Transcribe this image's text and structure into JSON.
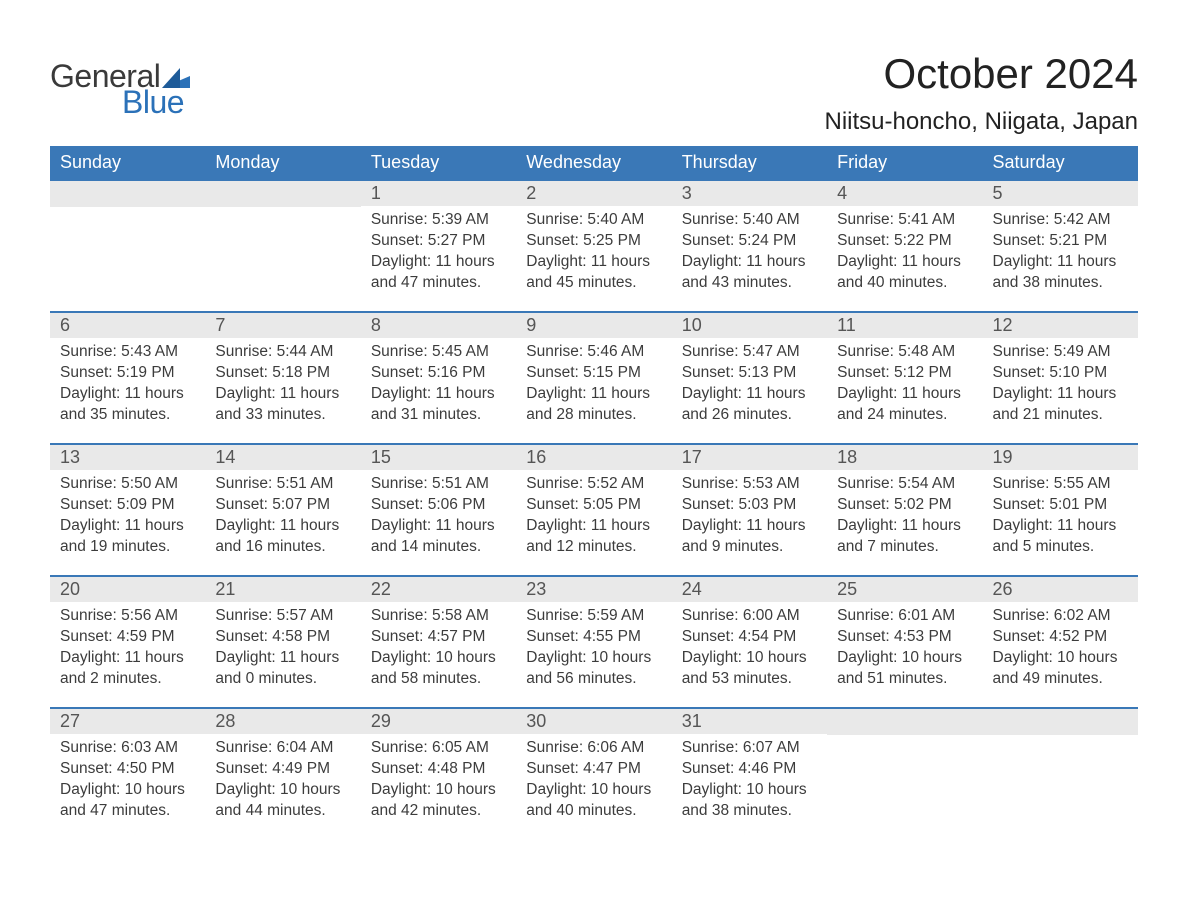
{
  "logo": {
    "text1": "General",
    "text2": "Blue"
  },
  "title": "October 2024",
  "location": "Niitsu-honcho, Niigata, Japan",
  "colors": {
    "header_bg": "#3a78b7",
    "header_text": "#ffffff",
    "daynum_bg": "#e9e9e9",
    "row_border": "#3a78b7",
    "body_text": "#3c3c3c",
    "logo_blue": "#2b71b8",
    "page_bg": "#ffffff"
  },
  "fonts": {
    "title_size_pt": 32,
    "location_size_pt": 18,
    "weekday_size_pt": 14,
    "daynum_size_pt": 14,
    "body_size_pt": 12
  },
  "weekdays": [
    "Sunday",
    "Monday",
    "Tuesday",
    "Wednesday",
    "Thursday",
    "Friday",
    "Saturday"
  ],
  "weeks": [
    [
      null,
      null,
      {
        "n": "1",
        "sunrise": "Sunrise: 5:39 AM",
        "sunset": "Sunset: 5:27 PM",
        "daylight": "Daylight: 11 hours and 47 minutes."
      },
      {
        "n": "2",
        "sunrise": "Sunrise: 5:40 AM",
        "sunset": "Sunset: 5:25 PM",
        "daylight": "Daylight: 11 hours and 45 minutes."
      },
      {
        "n": "3",
        "sunrise": "Sunrise: 5:40 AM",
        "sunset": "Sunset: 5:24 PM",
        "daylight": "Daylight: 11 hours and 43 minutes."
      },
      {
        "n": "4",
        "sunrise": "Sunrise: 5:41 AM",
        "sunset": "Sunset: 5:22 PM",
        "daylight": "Daylight: 11 hours and 40 minutes."
      },
      {
        "n": "5",
        "sunrise": "Sunrise: 5:42 AM",
        "sunset": "Sunset: 5:21 PM",
        "daylight": "Daylight: 11 hours and 38 minutes."
      }
    ],
    [
      {
        "n": "6",
        "sunrise": "Sunrise: 5:43 AM",
        "sunset": "Sunset: 5:19 PM",
        "daylight": "Daylight: 11 hours and 35 minutes."
      },
      {
        "n": "7",
        "sunrise": "Sunrise: 5:44 AM",
        "sunset": "Sunset: 5:18 PM",
        "daylight": "Daylight: 11 hours and 33 minutes."
      },
      {
        "n": "8",
        "sunrise": "Sunrise: 5:45 AM",
        "sunset": "Sunset: 5:16 PM",
        "daylight": "Daylight: 11 hours and 31 minutes."
      },
      {
        "n": "9",
        "sunrise": "Sunrise: 5:46 AM",
        "sunset": "Sunset: 5:15 PM",
        "daylight": "Daylight: 11 hours and 28 minutes."
      },
      {
        "n": "10",
        "sunrise": "Sunrise: 5:47 AM",
        "sunset": "Sunset: 5:13 PM",
        "daylight": "Daylight: 11 hours and 26 minutes."
      },
      {
        "n": "11",
        "sunrise": "Sunrise: 5:48 AM",
        "sunset": "Sunset: 5:12 PM",
        "daylight": "Daylight: 11 hours and 24 minutes."
      },
      {
        "n": "12",
        "sunrise": "Sunrise: 5:49 AM",
        "sunset": "Sunset: 5:10 PM",
        "daylight": "Daylight: 11 hours and 21 minutes."
      }
    ],
    [
      {
        "n": "13",
        "sunrise": "Sunrise: 5:50 AM",
        "sunset": "Sunset: 5:09 PM",
        "daylight": "Daylight: 11 hours and 19 minutes."
      },
      {
        "n": "14",
        "sunrise": "Sunrise: 5:51 AM",
        "sunset": "Sunset: 5:07 PM",
        "daylight": "Daylight: 11 hours and 16 minutes."
      },
      {
        "n": "15",
        "sunrise": "Sunrise: 5:51 AM",
        "sunset": "Sunset: 5:06 PM",
        "daylight": "Daylight: 11 hours and 14 minutes."
      },
      {
        "n": "16",
        "sunrise": "Sunrise: 5:52 AM",
        "sunset": "Sunset: 5:05 PM",
        "daylight": "Daylight: 11 hours and 12 minutes."
      },
      {
        "n": "17",
        "sunrise": "Sunrise: 5:53 AM",
        "sunset": "Sunset: 5:03 PM",
        "daylight": "Daylight: 11 hours and 9 minutes."
      },
      {
        "n": "18",
        "sunrise": "Sunrise: 5:54 AM",
        "sunset": "Sunset: 5:02 PM",
        "daylight": "Daylight: 11 hours and 7 minutes."
      },
      {
        "n": "19",
        "sunrise": "Sunrise: 5:55 AM",
        "sunset": "Sunset: 5:01 PM",
        "daylight": "Daylight: 11 hours and 5 minutes."
      }
    ],
    [
      {
        "n": "20",
        "sunrise": "Sunrise: 5:56 AM",
        "sunset": "Sunset: 4:59 PM",
        "daylight": "Daylight: 11 hours and 2 minutes."
      },
      {
        "n": "21",
        "sunrise": "Sunrise: 5:57 AM",
        "sunset": "Sunset: 4:58 PM",
        "daylight": "Daylight: 11 hours and 0 minutes."
      },
      {
        "n": "22",
        "sunrise": "Sunrise: 5:58 AM",
        "sunset": "Sunset: 4:57 PM",
        "daylight": "Daylight: 10 hours and 58 minutes."
      },
      {
        "n": "23",
        "sunrise": "Sunrise: 5:59 AM",
        "sunset": "Sunset: 4:55 PM",
        "daylight": "Daylight: 10 hours and 56 minutes."
      },
      {
        "n": "24",
        "sunrise": "Sunrise: 6:00 AM",
        "sunset": "Sunset: 4:54 PM",
        "daylight": "Daylight: 10 hours and 53 minutes."
      },
      {
        "n": "25",
        "sunrise": "Sunrise: 6:01 AM",
        "sunset": "Sunset: 4:53 PM",
        "daylight": "Daylight: 10 hours and 51 minutes."
      },
      {
        "n": "26",
        "sunrise": "Sunrise: 6:02 AM",
        "sunset": "Sunset: 4:52 PM",
        "daylight": "Daylight: 10 hours and 49 minutes."
      }
    ],
    [
      {
        "n": "27",
        "sunrise": "Sunrise: 6:03 AM",
        "sunset": "Sunset: 4:50 PM",
        "daylight": "Daylight: 10 hours and 47 minutes."
      },
      {
        "n": "28",
        "sunrise": "Sunrise: 6:04 AM",
        "sunset": "Sunset: 4:49 PM",
        "daylight": "Daylight: 10 hours and 44 minutes."
      },
      {
        "n": "29",
        "sunrise": "Sunrise: 6:05 AM",
        "sunset": "Sunset: 4:48 PM",
        "daylight": "Daylight: 10 hours and 42 minutes."
      },
      {
        "n": "30",
        "sunrise": "Sunrise: 6:06 AM",
        "sunset": "Sunset: 4:47 PM",
        "daylight": "Daylight: 10 hours and 40 minutes."
      },
      {
        "n": "31",
        "sunrise": "Sunrise: 6:07 AM",
        "sunset": "Sunset: 4:46 PM",
        "daylight": "Daylight: 10 hours and 38 minutes."
      },
      null,
      null
    ]
  ]
}
